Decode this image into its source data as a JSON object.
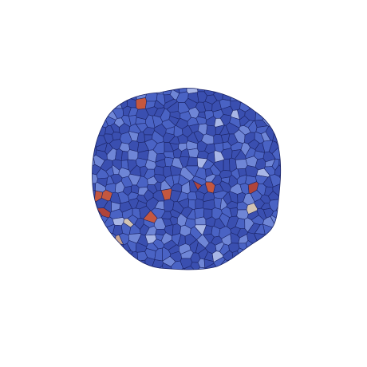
{
  "figure": {
    "description_visible_text": "",
    "palette": {
      "background": "#ffffff",
      "base_blue": "#3a4fb0",
      "mid_blue": "#4a63c4",
      "light_blue": "#6f86d6",
      "pale_blue": "#a8b6e6",
      "cell_edge": "#1b2466",
      "red": "#b0443a",
      "orange_red": "#c4573f",
      "tan": "#c9a48f",
      "beige": "#d2c3b2"
    },
    "highlight_cells": [
      {
        "name": "cell-top-left-red",
        "color": "orange_red"
      },
      {
        "name": "cell-left-red-1",
        "color": "orange_red"
      },
      {
        "name": "cell-left-red-2",
        "color": "orange_red"
      },
      {
        "name": "cell-left-red-3",
        "color": "red"
      },
      {
        "name": "cell-center-red",
        "color": "orange_red"
      },
      {
        "name": "cell-center-right-red-1",
        "color": "red"
      },
      {
        "name": "cell-center-right-red-2",
        "color": "orange_red"
      },
      {
        "name": "cell-right-red",
        "color": "red"
      },
      {
        "name": "cell-lower-red",
        "color": "orange_red"
      },
      {
        "name": "cell-lower-left-tan",
        "color": "tan"
      },
      {
        "name": "cell-lower-left-beige",
        "color": "beige"
      },
      {
        "name": "cell-right-beige",
        "color": "beige"
      }
    ]
  }
}
